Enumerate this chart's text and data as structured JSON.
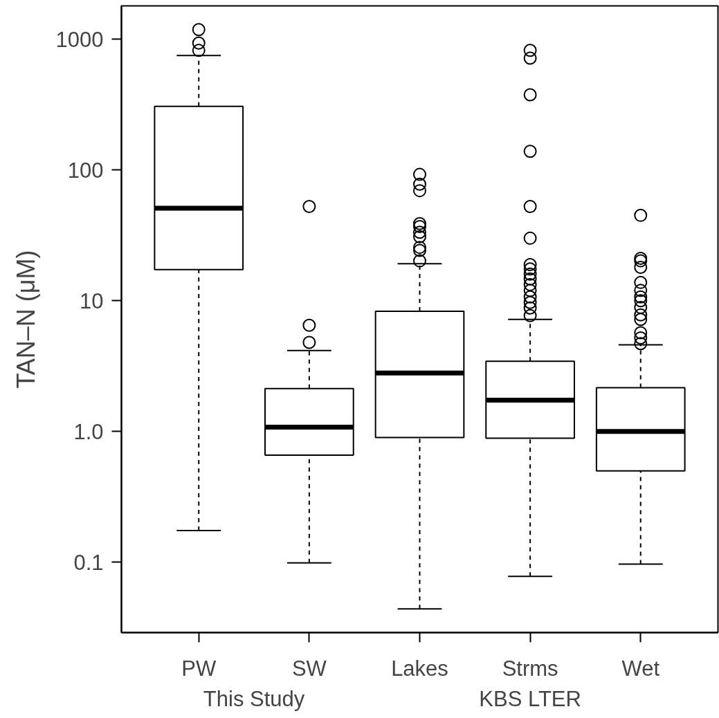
{
  "chart_data": {
    "type": "box",
    "ylabel": "TAN–N (μM)",
    "log": true,
    "grid": false,
    "marker": "circle",
    "categories": [
      "PW",
      "SW",
      "Lakes",
      "Strms",
      "Wet"
    ],
    "ylim": [
      0.029,
      1800
    ],
    "yticks": [
      0.1,
      {
        "value": 1,
        "label": "1.0"
      },
      10,
      100,
      1000
    ],
    "boxes": [
      {
        "low": 0.175,
        "q1": 17.3,
        "median": 51,
        "q3": 307,
        "high": 750,
        "outliers": [
          1186,
          935,
          822
        ]
      },
      {
        "low": 0.099,
        "q1": 0.66,
        "median": 1.08,
        "q3": 2.13,
        "high": 4.16,
        "outliers": [
          52.6,
          6.5,
          4.8
        ]
      },
      {
        "low": 0.044,
        "q1": 0.9,
        "median": 2.8,
        "q3": 8.3,
        "high": 19.2,
        "outliers": [
          92.6,
          78,
          69.5,
          38.9,
          37,
          33.4,
          30.9,
          25.6,
          24.3,
          20.2
        ]
      },
      {
        "low": 0.078,
        "q1": 0.89,
        "median": 1.74,
        "q3": 3.45,
        "high": 7.2,
        "outliers": [
          823,
          717,
          376,
          139,
          52.6,
          30.1,
          18.9,
          17.5,
          16,
          14.7,
          13.3,
          12,
          10.7,
          9.7,
          8.8,
          7.7
        ]
      },
      {
        "low": 0.097,
        "q1": 0.5,
        "median": 1.0,
        "q3": 2.16,
        "high": 4.6,
        "outliers": [
          45,
          21.1,
          20.2,
          18,
          13.8,
          12,
          10.7,
          10,
          8.9,
          7.8,
          7.2,
          5.7,
          5.2,
          4.7
        ]
      }
    ],
    "annotations": [
      "This Study",
      "KBS LTER"
    ]
  }
}
